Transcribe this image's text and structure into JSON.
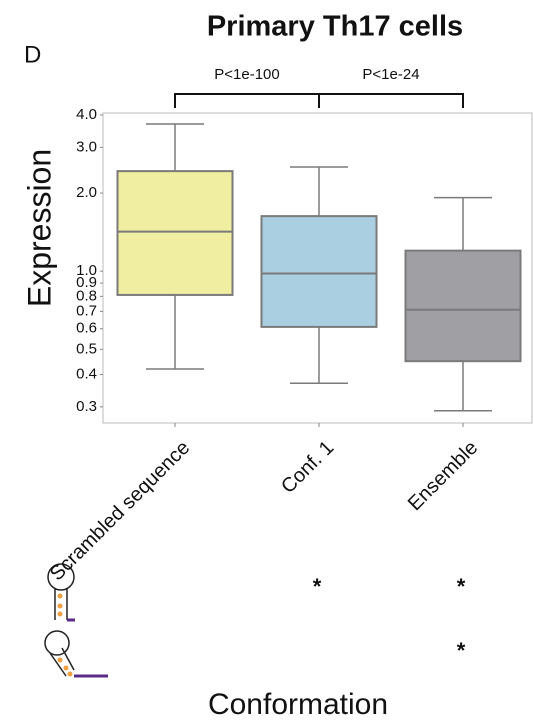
{
  "chart_data": {
    "type": "box",
    "title": "Primary Th17 cells",
    "panel_label": "D",
    "y_label": "Expression",
    "x_label": "Conformation",
    "categories": [
      "Scrambled sequence",
      "Conf. 1",
      "Ensemble"
    ],
    "colors": [
      "#f0eea0",
      "#a9cfe0",
      "#a0a0a4"
    ],
    "boxes": [
      {
        "whislo": 0.42,
        "q1": 0.81,
        "med": 1.42,
        "q3": 2.43,
        "whishi": 3.69
      },
      {
        "whislo": 0.37,
        "q1": 0.61,
        "med": 0.98,
        "q3": 1.63,
        "whishi": 2.52
      },
      {
        "whislo": 0.29,
        "q1": 0.45,
        "med": 0.71,
        "q3": 1.2,
        "whishi": 1.92
      }
    ],
    "log_y": true,
    "ylim": [
      0.26,
      4.07
    ],
    "yticks": [
      {
        "value": 4,
        "label": "4.0"
      },
      {
        "value": 3,
        "label": "3.0"
      },
      {
        "value": 2,
        "label": "2.0"
      },
      {
        "value": 1,
        "label": "1.0"
      },
      0.9,
      0.8,
      0.7,
      0.6,
      0.5,
      0.4,
      0.3
    ],
    "comparisons": [
      "P<1e-100",
      "P<1e-24"
    ],
    "annotation_rows": [
      [
        null,
        "*",
        "*"
      ],
      [
        null,
        null,
        "*"
      ]
    ]
  }
}
